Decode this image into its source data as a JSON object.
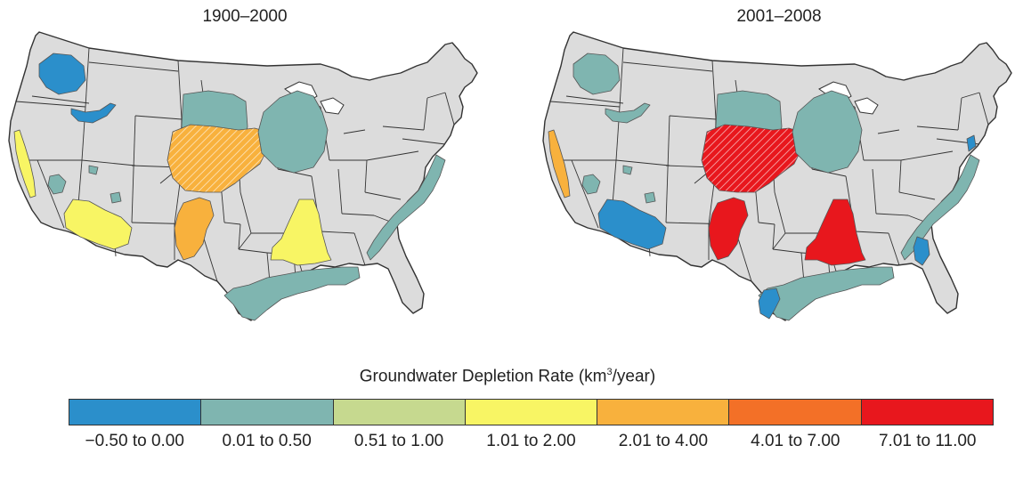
{
  "maps": [
    {
      "title": "1900–2000",
      "regions": [
        {
          "name": "columbia-plateau",
          "category": 0
        },
        {
          "name": "snake-river-plain",
          "category": 0
        },
        {
          "name": "central-valley",
          "category": 3
        },
        {
          "name": "basin-range",
          "category": 1
        },
        {
          "name": "arizona-alluvial",
          "category": 3
        },
        {
          "name": "high-plains-north",
          "category": 1
        },
        {
          "name": "high-plains-center",
          "category": 4,
          "hatched": true
        },
        {
          "name": "high-plains-south",
          "category": 4
        },
        {
          "name": "mississippi-embayment",
          "category": 3
        },
        {
          "name": "cambrian-ordovician",
          "category": 1
        },
        {
          "name": "coastal-plain-atlantic",
          "category": 1
        },
        {
          "name": "coastal-plain-gulf",
          "category": 1
        }
      ]
    },
    {
      "title": "2001–2008",
      "regions": [
        {
          "name": "columbia-plateau",
          "category": 1
        },
        {
          "name": "snake-river-plain",
          "category": 1
        },
        {
          "name": "central-valley",
          "category": 4
        },
        {
          "name": "basin-range",
          "category": 1
        },
        {
          "name": "arizona-alluvial",
          "category": 0
        },
        {
          "name": "high-plains-north",
          "category": 1
        },
        {
          "name": "high-plains-center",
          "category": 6,
          "hatched": true
        },
        {
          "name": "high-plains-south",
          "category": 6
        },
        {
          "name": "mississippi-embayment",
          "category": 6
        },
        {
          "name": "cambrian-ordovician",
          "category": 1
        },
        {
          "name": "coastal-plain-atlantic",
          "category": 1
        },
        {
          "name": "coastal-plain-gulf",
          "category": 1
        },
        {
          "name": "atlantic-south",
          "category": 0
        },
        {
          "name": "gulf-texas",
          "category": 0
        },
        {
          "name": "nj-coastal",
          "category": 0
        }
      ]
    }
  ],
  "legend": {
    "title": "Groundwater Depletion Rate (km",
    "title_sup": "3",
    "title_end": "/year)",
    "categories": [
      {
        "label": "−0.50 to 0.00",
        "color": "#2b8fcb"
      },
      {
        "label": "0.01 to 0.50",
        "color": "#7fb5b0"
      },
      {
        "label": "0.51 to 1.00",
        "color": "#c6d98f"
      },
      {
        "label": "1.01 to 2.00",
        "color": "#f8f564"
      },
      {
        "label": "2.01 to 4.00",
        "color": "#f8b13d"
      },
      {
        "label": "4.01 to 7.00",
        "color": "#f37027"
      },
      {
        "label": "7.01 to 11.00",
        "color": "#e8171d"
      }
    ]
  },
  "land_color": "#dcdcdc",
  "border_color": "#333333"
}
